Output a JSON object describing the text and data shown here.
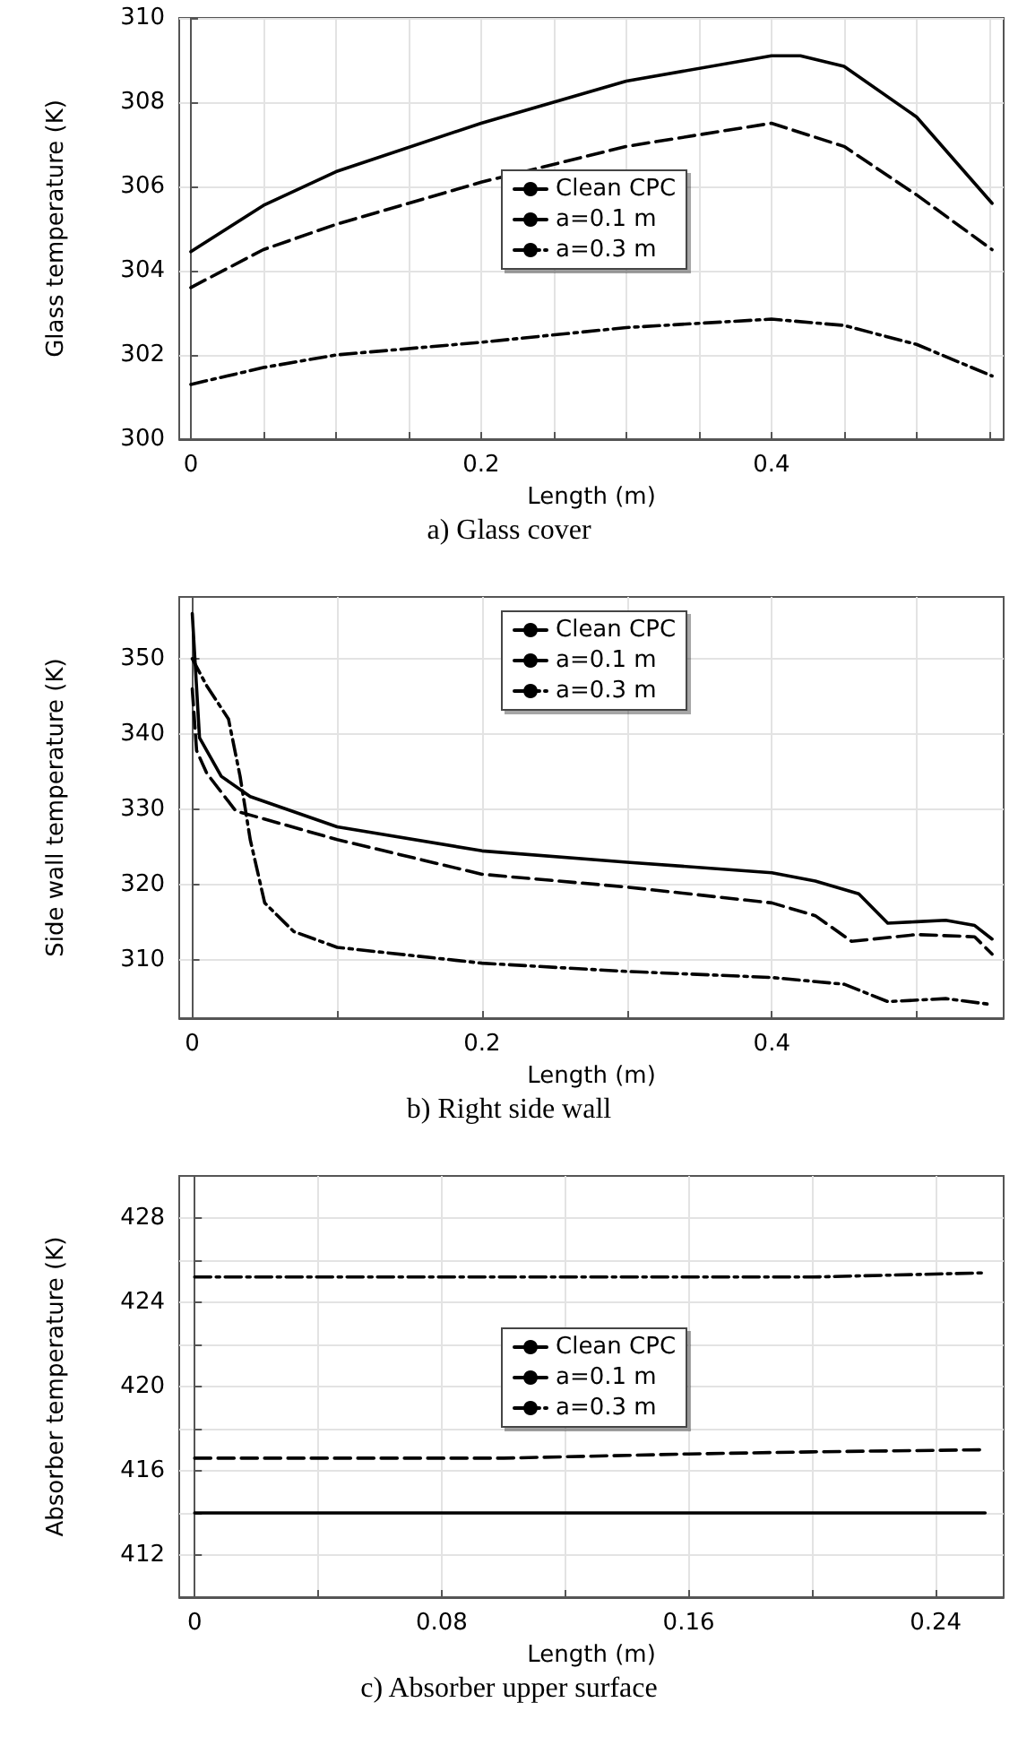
{
  "chart_data": [
    {
      "type": "line",
      "title": "a) Glass cover",
      "xlabel": "Length (m)",
      "ylabel": "Glass temperature (K)",
      "xlim": [
        -0.008,
        0.56
      ],
      "xticks": [
        0,
        {
          "value": 0.05,
          "label": null
        },
        {
          "value": 0.1,
          "label": null
        },
        {
          "value": 0.15,
          "label": null
        },
        0.2,
        {
          "value": 0.25,
          "label": null
        },
        {
          "value": 0.3,
          "label": null
        },
        {
          "value": 0.35,
          "label": null
        },
        0.4,
        {
          "value": 0.45,
          "label": null
        },
        {
          "value": 0.5,
          "label": null
        },
        {
          "value": 0.55,
          "label": null
        }
      ],
      "ylim": [
        300,
        310
      ],
      "yticks": [
        300,
        302,
        304,
        306,
        308,
        310
      ],
      "grid": true,
      "legend": "center",
      "series": [
        {
          "name": "Clean CPC",
          "color": "#000000",
          "line_style": "solid",
          "x": [
            0,
            0.05,
            0.1,
            0.2,
            0.3,
            0.4,
            0.42,
            0.45,
            0.5,
            0.552
          ],
          "values": [
            304.45,
            305.55,
            306.35,
            307.5,
            308.5,
            309.1,
            309.1,
            308.85,
            307.65,
            305.6
          ]
        },
        {
          "name": "a=0.1 m",
          "color": "#000000",
          "line_style": "dashed",
          "x": [
            0,
            0.05,
            0.1,
            0.2,
            0.3,
            0.4,
            0.45,
            0.5,
            0.552
          ],
          "values": [
            303.6,
            304.5,
            305.1,
            306.1,
            306.95,
            307.5,
            306.95,
            305.8,
            304.5
          ]
        },
        {
          "name": "a=0.3 m",
          "color": "#000000",
          "line_style": "dashdot",
          "x": [
            0,
            0.05,
            0.1,
            0.2,
            0.3,
            0.4,
            0.45,
            0.5,
            0.552
          ],
          "values": [
            301.3,
            301.7,
            302.0,
            302.3,
            302.65,
            302.85,
            302.7,
            302.25,
            301.5
          ]
        }
      ]
    },
    {
      "type": "line",
      "title": "b) Right side wall",
      "xlabel": "Length (m)",
      "ylabel": "Side wall temperature (K)",
      "xlim": [
        -0.009,
        0.56
      ],
      "xticks": [
        0,
        {
          "value": 0.1,
          "label": null
        },
        0.2,
        {
          "value": 0.3,
          "label": null
        },
        0.4,
        {
          "value": 0.5,
          "label": null
        }
      ],
      "ylim": [
        302.3,
        358.2
      ],
      "yticks": [
        310,
        320,
        330,
        340,
        350
      ],
      "grid": true,
      "legend": "top",
      "series": [
        {
          "name": "Clean CPC",
          "color": "#000000",
          "line_style": "solid",
          "x": [
            0,
            0.005,
            0.02,
            0.04,
            0.1,
            0.2,
            0.3,
            0.4,
            0.43,
            0.46,
            0.48,
            0.5,
            0.52,
            0.54,
            0.552
          ],
          "values": [
            356,
            339.5,
            334.4,
            331.7,
            327.7,
            324.5,
            323,
            321.6,
            320.5,
            318.8,
            314.9,
            315.1,
            315.3,
            314.6,
            312.8
          ]
        },
        {
          "name": "a=0.1 m",
          "color": "#000000",
          "line_style": "dashed",
          "x": [
            0,
            0.003,
            0.01,
            0.03,
            0.1,
            0.2,
            0.3,
            0.4,
            0.43,
            0.455,
            0.5,
            0.54,
            0.552
          ],
          "values": [
            346,
            337.8,
            334.8,
            329.8,
            326,
            321.4,
            319.7,
            317.6,
            315.9,
            312.5,
            313.4,
            313.1,
            310.8
          ]
        },
        {
          "name": "a=0.3 m",
          "color": "#000000",
          "line_style": "dashdot",
          "x": [
            0,
            0.01,
            0.025,
            0.033,
            0.04,
            0.05,
            0.07,
            0.1,
            0.2,
            0.3,
            0.4,
            0.45,
            0.48,
            0.52,
            0.552
          ],
          "values": [
            350,
            346.4,
            342,
            334.4,
            326,
            317.6,
            313.8,
            311.7,
            309.6,
            308.5,
            307.7,
            306.8,
            304.5,
            304.9,
            304.1
          ]
        }
      ]
    },
    {
      "type": "line",
      "title": "c) Absorber upper surface",
      "xlabel": "Length (m)",
      "ylabel": "Absorber temperature (K)",
      "xlim": [
        -0.005,
        0.262
      ],
      "xticks": [
        0,
        {
          "value": 0.04,
          "label": null
        },
        0.08,
        {
          "value": 0.12,
          "label": null
        },
        0.16,
        {
          "value": 0.2,
          "label": null
        },
        0.24
      ],
      "ylim": [
        410,
        430
      ],
      "yticks": [
        412,
        {
          "value": 414,
          "label": null
        },
        416,
        {
          "value": 418,
          "label": null
        },
        420,
        {
          "value": 422,
          "label": null
        },
        424,
        {
          "value": 426,
          "label": null
        },
        428
      ],
      "grid": true,
      "legend": "center",
      "series": [
        {
          "name": "Clean CPC",
          "color": "#000000",
          "line_style": "solid",
          "x": [
            0,
            0.1,
            0.2,
            0.256
          ],
          "values": [
            414,
            414,
            414,
            414
          ]
        },
        {
          "name": "a=0.1 m",
          "color": "#000000",
          "line_style": "dashed",
          "x": [
            0,
            0.1,
            0.16,
            0.2,
            0.256
          ],
          "values": [
            416.6,
            416.6,
            416.8,
            416.9,
            417
          ]
        },
        {
          "name": "a=0.3 m",
          "color": "#000000",
          "line_style": "dashdot",
          "x": [
            0,
            0.1,
            0.2,
            0.256
          ],
          "values": [
            425.2,
            425.2,
            425.2,
            425.4
          ]
        }
      ]
    }
  ]
}
